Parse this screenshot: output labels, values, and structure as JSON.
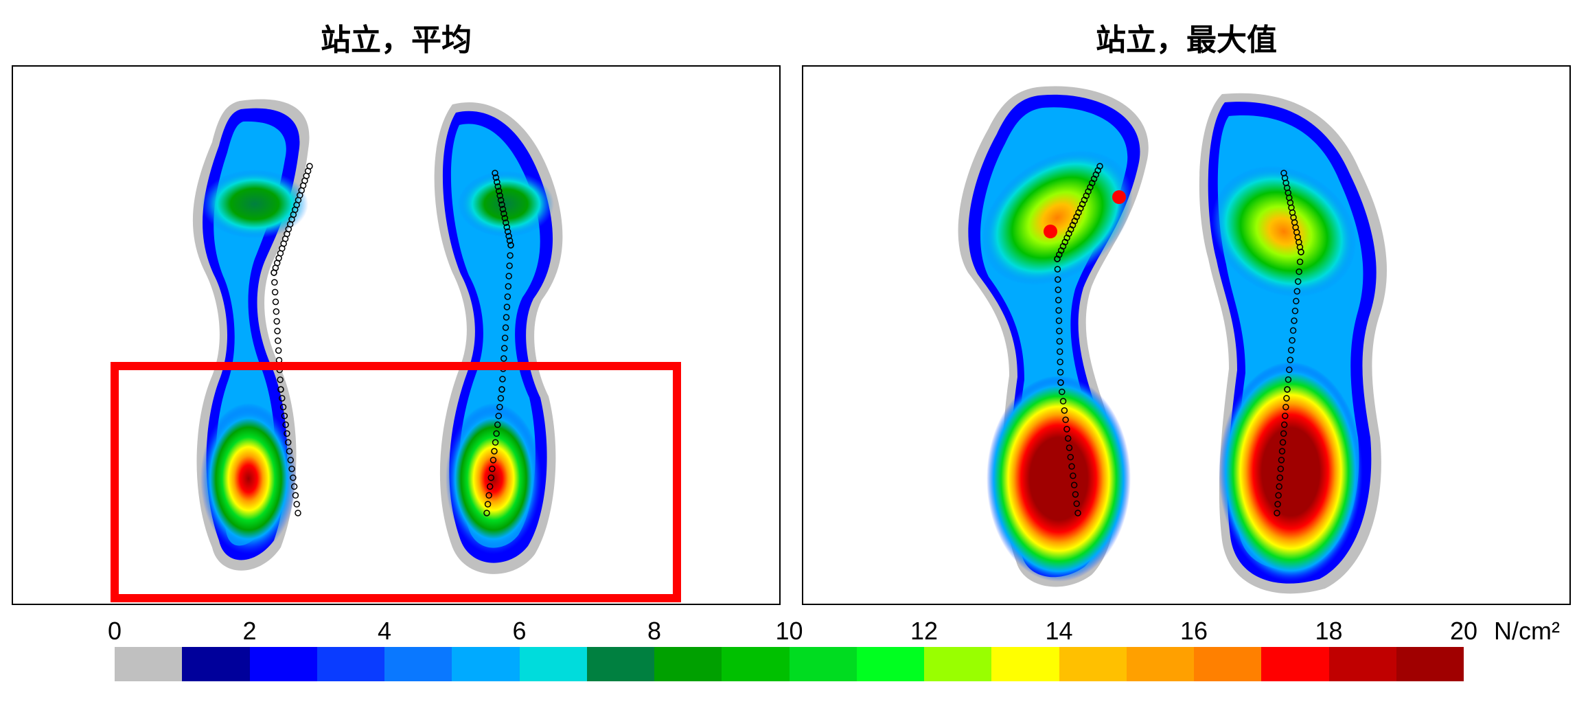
{
  "chart_data": [
    {
      "type": "heatmap",
      "title": "站立，平均",
      "panel": "average",
      "annotation": "highlighted heel region (red rectangle)",
      "cop_points": "foot-pressure center-of-pressure trace, dotted"
    },
    {
      "type": "heatmap",
      "title": "站立，最大值",
      "panel": "maximum",
      "cop_points": "foot-pressure center-of-pressure trace, dotted"
    }
  ],
  "colorbar": {
    "ticks": [
      "0",
      "2",
      "4",
      "6",
      "8",
      "10",
      "12",
      "14",
      "16",
      "18",
      "20"
    ],
    "unit": "N/cm²",
    "range": [
      0,
      20
    ],
    "colors": [
      "#c0c0c0",
      "#00009b",
      "#0000ff",
      "#0a3cff",
      "#0a78ff",
      "#00aaff",
      "#00dcdc",
      "#008040",
      "#00a000",
      "#00c000",
      "#00dc20",
      "#00ff20",
      "#99ff00",
      "#ffff00",
      "#ffc000",
      "#ffa000",
      "#ff8000",
      "#ff0000",
      "#c00000",
      "#a00000"
    ]
  }
}
